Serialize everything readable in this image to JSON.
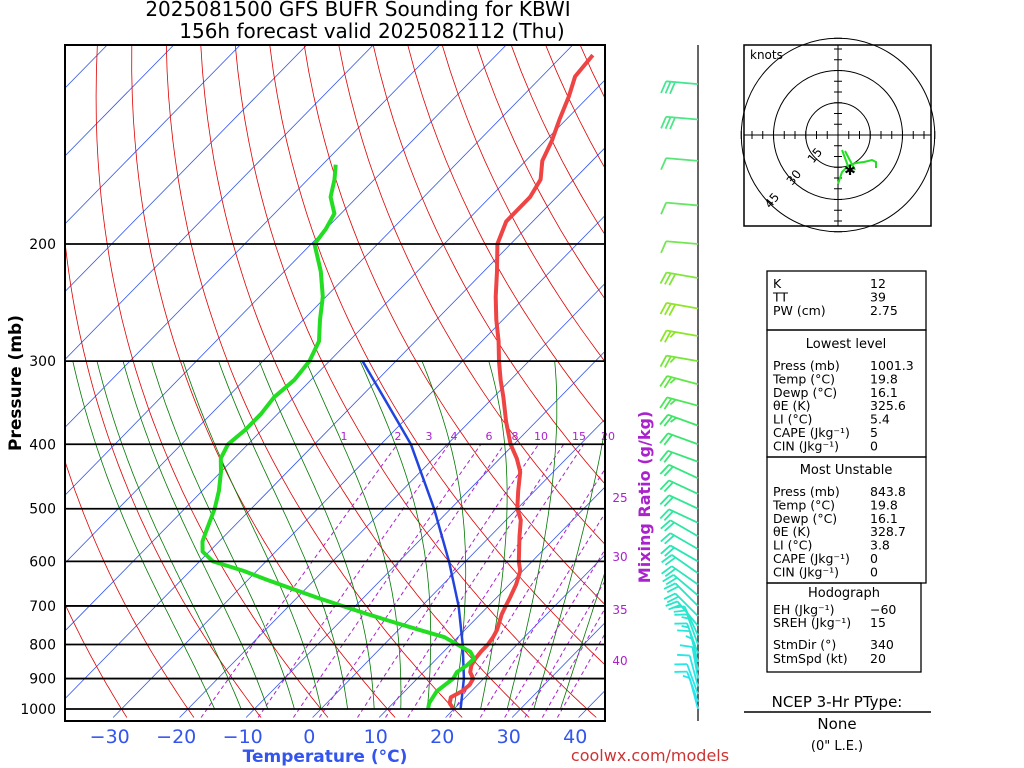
{
  "title_line1": "2025081500 GFS BUFR Sounding for KBWI",
  "title_line2": "156h forecast valid 2025082112 (Thu)",
  "footer_url": "coolwx.com/models",
  "chart_data": {
    "type": "skew-t",
    "ylabel": "Pressure (mb)",
    "xlabel": "Temperature (°C)",
    "mixing_label": "Mixing Ratio (g/kg)",
    "pressure_ticks": [
      "200",
      "300",
      "400",
      "500",
      "600",
      "700",
      "800",
      "900",
      "1000"
    ],
    "temp_ticks": [
      "−30",
      "−20",
      "−10",
      "0",
      "10",
      "20",
      "30",
      "40"
    ],
    "mixing_ratio_ticks": [
      "1",
      "2",
      "3",
      "4",
      "6",
      "8",
      "10",
      "15",
      "20"
    ],
    "mixing_ratio_side_ticks": [
      "25",
      "30",
      "35",
      "40"
    ],
    "temperature_profile": [
      [
        1001,
        20
      ],
      [
        980,
        18.5
      ],
      [
        960,
        17.8
      ],
      [
        940,
        18.6
      ],
      [
        920,
        18.8
      ],
      [
        900,
        18.4
      ],
      [
        880,
        17.0
      ],
      [
        860,
        16.2
      ],
      [
        840,
        15.8
      ],
      [
        820,
        15.6
      ],
      [
        800,
        15.6
      ],
      [
        780,
        15.3
      ],
      [
        760,
        14.8
      ],
      [
        740,
        14.0
      ],
      [
        720,
        13.2
      ],
      [
        700,
        12.6
      ],
      [
        680,
        12.0
      ],
      [
        650,
        11.0
      ],
      [
        620,
        9.6
      ],
      [
        600,
        8.0
      ],
      [
        580,
        6.6
      ],
      [
        550,
        4.4
      ],
      [
        520,
        2.2
      ],
      [
        500,
        0.0
      ],
      [
        470,
        -2.5
      ],
      [
        440,
        -5.0
      ],
      [
        420,
        -7.5
      ],
      [
        400,
        -10.5
      ],
      [
        370,
        -14.5
      ],
      [
        340,
        -18.5
      ],
      [
        320,
        -21.5
      ],
      [
        300,
        -24.5
      ],
      [
        280,
        -27.5
      ],
      [
        260,
        -31.0
      ],
      [
        240,
        -34.5
      ],
      [
        220,
        -38.0
      ],
      [
        200,
        -42.0
      ],
      [
        185,
        -44.0
      ],
      [
        170,
        -44.0
      ],
      [
        160,
        -45.0
      ],
      [
        150,
        -47.5
      ],
      [
        140,
        -49.0
      ],
      [
        130,
        -51.0
      ],
      [
        120,
        -53.0
      ],
      [
        112,
        -55.0
      ],
      [
        104,
        -55.5
      ]
    ],
    "dewpoint_profile": [
      [
        1000,
        16.1
      ],
      [
        980,
        15.4
      ],
      [
        960,
        15.1
      ],
      [
        940,
        14.8
      ],
      [
        920,
        15.1
      ],
      [
        900,
        15.4
      ],
      [
        880,
        15.0
      ],
      [
        860,
        15.5
      ],
      [
        840,
        15.6
      ],
      [
        820,
        14.0
      ],
      [
        800,
        11.0
      ],
      [
        780,
        8.0
      ],
      [
        760,
        3.0
      ],
      [
        740,
        -2.0
      ],
      [
        720,
        -7.0
      ],
      [
        700,
        -12.0
      ],
      [
        680,
        -17.0
      ],
      [
        660,
        -22.0
      ],
      [
        640,
        -27.0
      ],
      [
        620,
        -32.0
      ],
      [
        600,
        -38.0
      ],
      [
        580,
        -41.0
      ],
      [
        560,
        -42.5
      ],
      [
        540,
        -43.5
      ],
      [
        500,
        -45.5
      ],
      [
        470,
        -47.5
      ],
      [
        440,
        -50.0
      ],
      [
        420,
        -52.0
      ],
      [
        400,
        -53.0
      ],
      [
        380,
        -52.5
      ],
      [
        360,
        -52.5
      ],
      [
        340,
        -53.0
      ],
      [
        320,
        -52.5
      ],
      [
        300,
        -53.0
      ],
      [
        280,
        -54.5
      ],
      [
        260,
        -57.5
      ],
      [
        240,
        -60.5
      ],
      [
        220,
        -64.5
      ],
      [
        200,
        -69.5
      ],
      [
        190,
        -70.0
      ],
      [
        180,
        -71.0
      ],
      [
        170,
        -74.0
      ],
      [
        160,
        -76.0
      ],
      [
        152,
        -78.0
      ]
    ],
    "parcel_path": [
      [
        1000,
        21
      ],
      [
        900,
        17
      ],
      [
        800,
        11.8
      ],
      [
        700,
        5.5
      ],
      [
        600,
        -2.5
      ],
      [
        500,
        -12.5
      ],
      [
        400,
        -25.5
      ],
      [
        300,
        -45.0
      ]
    ],
    "wind_profile": [
      {
        "p": 1000,
        "dir": 345,
        "spd": 8
      },
      {
        "p": 975,
        "dir": 340,
        "spd": 10
      },
      {
        "p": 950,
        "dir": 340,
        "spd": 12
      },
      {
        "p": 925,
        "dir": 345,
        "spd": 12
      },
      {
        "p": 900,
        "dir": 350,
        "spd": 10
      },
      {
        "p": 875,
        "dir": 350,
        "spd": 8
      },
      {
        "p": 850,
        "dir": 345,
        "spd": 10
      },
      {
        "p": 825,
        "dir": 340,
        "spd": 15
      },
      {
        "p": 800,
        "dir": 340,
        "spd": 15
      },
      {
        "p": 775,
        "dir": 335,
        "spd": 20
      },
      {
        "p": 750,
        "dir": 320,
        "spd": 20
      },
      {
        "p": 725,
        "dir": 315,
        "spd": 20
      },
      {
        "p": 700,
        "dir": 315,
        "spd": 20
      },
      {
        "p": 675,
        "dir": 310,
        "spd": 20
      },
      {
        "p": 650,
        "dir": 305,
        "spd": 20
      },
      {
        "p": 625,
        "dir": 305,
        "spd": 20
      },
      {
        "p": 600,
        "dir": 300,
        "spd": 20
      },
      {
        "p": 575,
        "dir": 300,
        "spd": 20
      },
      {
        "p": 550,
        "dir": 300,
        "spd": 20
      },
      {
        "p": 525,
        "dir": 295,
        "spd": 20
      },
      {
        "p": 500,
        "dir": 295,
        "spd": 20
      },
      {
        "p": 475,
        "dir": 295,
        "spd": 20
      },
      {
        "p": 450,
        "dir": 295,
        "spd": 20
      },
      {
        "p": 425,
        "dir": 290,
        "spd": 20
      },
      {
        "p": 400,
        "dir": 290,
        "spd": 20
      },
      {
        "p": 375,
        "dir": 290,
        "spd": 25
      },
      {
        "p": 350,
        "dir": 285,
        "spd": 25
      },
      {
        "p": 325,
        "dir": 285,
        "spd": 25
      },
      {
        "p": 300,
        "dir": 280,
        "spd": 25
      },
      {
        "p": 275,
        "dir": 280,
        "spd": 25
      },
      {
        "p": 250,
        "dir": 280,
        "spd": 30
      },
      {
        "p": 225,
        "dir": 280,
        "spd": 30
      },
      {
        "p": 200,
        "dir": 275,
        "spd": 10
      },
      {
        "p": 175,
        "dir": 275,
        "spd": 10
      },
      {
        "p": 150,
        "dir": 275,
        "spd": 10
      },
      {
        "p": 130,
        "dir": 275,
        "spd": 30
      },
      {
        "p": 115,
        "dir": 275,
        "spd": 30
      },
      {
        "p": 100,
        "dir": 275,
        "spd": 30
      }
    ],
    "hodograph": {
      "unit_label": "knots",
      "ring_labels": [
        "15",
        "30",
        "45"
      ],
      "points": [
        [
          2,
          -10
        ],
        [
          8,
          -9
        ],
        [
          12,
          -7
        ],
        [
          16,
          -5
        ],
        [
          22,
          -5
        ],
        [
          28,
          -5
        ],
        [
          30,
          -6
        ],
        [
          30,
          -8
        ]
      ],
      "storm_motion": [
        7,
        -9
      ]
    }
  },
  "indices_panel": {
    "rows": [
      {
        "label": "K",
        "value": "12"
      },
      {
        "label": "TT",
        "value": "39"
      },
      {
        "label": "PW (cm)",
        "value": "2.75"
      }
    ],
    "lowest_level": {
      "header": "Lowest level",
      "rows": [
        {
          "label": "Press (mb)",
          "value": "1001.3"
        },
        {
          "label": "Temp (°C)",
          "value": "19.8"
        },
        {
          "label": "Dewp (°C)",
          "value": "16.1"
        },
        {
          "label": "θE (K)",
          "value": "325.6"
        },
        {
          "label": "LI (°C)",
          "value": "5.4"
        },
        {
          "label": "CAPE (Jkg⁻¹)",
          "value": "5"
        },
        {
          "label": "CIN (Jkg⁻¹)",
          "value": "0"
        }
      ]
    },
    "most_unstable": {
      "header": "Most Unstable",
      "rows": [
        {
          "label": "Press (mb)",
          "value": "843.8"
        },
        {
          "label": "Temp (°C)",
          "value": "19.8"
        },
        {
          "label": "Dewp (°C)",
          "value": "16.1"
        },
        {
          "label": "θE (K)",
          "value": "328.7"
        },
        {
          "label": "LI (°C)",
          "value": "3.8"
        },
        {
          "label": "CAPE (Jkg⁻¹)",
          "value": "0"
        },
        {
          "label": "CIN (Jkg⁻¹)",
          "value": "0"
        }
      ]
    },
    "hodograph_box": {
      "header": "Hodograph",
      "rows": [
        {
          "label": "EH (Jkg⁻¹)",
          "value": "−60"
        },
        {
          "label": "SREH (Jkg⁻¹)",
          "value": "15"
        },
        {
          "label": "StmDir (°)",
          "value": "340"
        },
        {
          "label": "StmSpd (kt)",
          "value": "20"
        }
      ]
    }
  },
  "ptype": {
    "title": "NCEP 3-Hr PType:",
    "value": "None",
    "sub": "(0\" L.E.)"
  },
  "colors": {
    "temperature": "#ee4444",
    "dewpoint": "#22dd22",
    "parcel": "#2244dd",
    "isotherm": "#3355ee",
    "dry_adiabat": "#dd0000",
    "moist_adiabat": "#007700",
    "mixing_ratio": "#aa22cc"
  }
}
